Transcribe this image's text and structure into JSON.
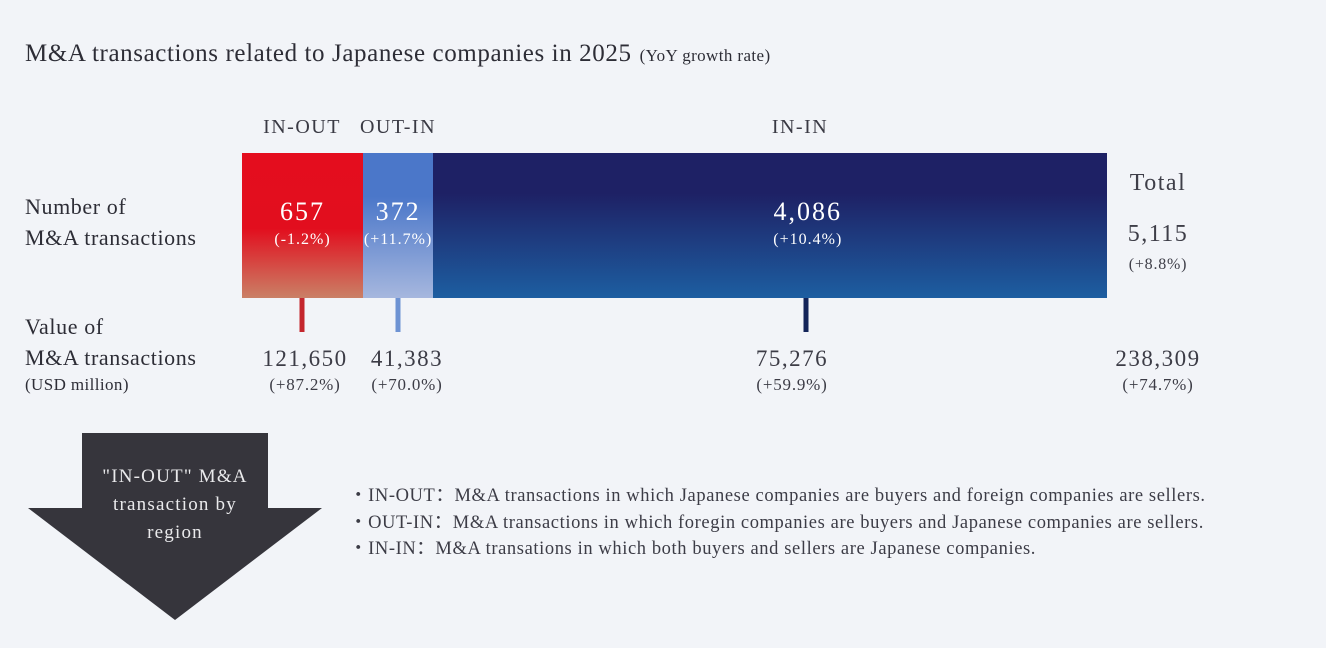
{
  "title": {
    "main": "M&A transactions related to Japanese companies in 2025",
    "suffix": "(YoY growth rate)"
  },
  "rows": {
    "count_label_line1": "Number of",
    "count_label_line2": "M&A transactions",
    "value_label_line1": "Value of",
    "value_label_line2": "M&A transactions",
    "value_label_line3": "(USD million)"
  },
  "segments": [
    {
      "label": "IN-OUT",
      "count": "657",
      "count_yoy": "(-1.2%)",
      "value": "121,650",
      "value_yoy": "(+87.2%)",
      "width_pct": 14.0
    },
    {
      "label": "OUT-IN",
      "count": "372",
      "count_yoy": "(+11.7%)",
      "value": "41,383",
      "value_yoy": "(+70.0%)",
      "width_pct": 8.1
    },
    {
      "label": "IN-IN",
      "count": "4,086",
      "count_yoy": "(+10.4%)",
      "value": "75,276",
      "value_yoy": "(+59.9%)",
      "width_pct": 77.9
    }
  ],
  "total": {
    "label": "Total",
    "count": "5,115",
    "count_yoy": "(+8.8%)",
    "value": "238,309",
    "value_yoy": "(+74.7%)"
  },
  "arrow": {
    "line1": "\"IN-OUT\" M&A",
    "line2": "transaction by",
    "line3": "region"
  },
  "legend": {
    "item1": "・IN-OUT：M&A transactions in which Japanese companies are buyers and foreign companies are sellers.",
    "item2": "・OUT-IN：M&A transactions in which foregin companies are buyers and Japanese companies are sellers.",
    "item3": "・IN-IN：M&A transations in which both buyers and sellers are Japanese companies."
  },
  "colors": {
    "background": "#f2f4f8",
    "in_out_red_top": "#e40d1e",
    "in_out_red_bottom": "#ca8066",
    "out_in_blue_top": "#4b77c9",
    "out_in_blue_bottom": "#a6b7de",
    "in_in_navy_top": "#1e2165",
    "in_in_navy_bottom": "#1d5ea1",
    "tick_red": "#c4262d",
    "tick_blue": "#6e93d3",
    "tick_navy": "#132459",
    "arrow_fill": "#36353c",
    "text_dark": "#2d2d36",
    "bar_text": "#ffffff"
  },
  "chart_data": {
    "type": "bar",
    "subtype": "horizontal-stacked",
    "title": "M&A transactions related to Japanese companies in 2025 (YoY growth rate)",
    "categories": [
      "IN-OUT",
      "OUT-IN",
      "IN-IN"
    ],
    "series": [
      {
        "name": "Number of M&A transactions",
        "values": [
          657,
          372,
          4086
        ],
        "yoy_growth_pct": [
          -1.2,
          11.7,
          10.4
        ],
        "total": 5115,
        "total_yoy_pct": 8.8
      },
      {
        "name": "Value of M&A transactions (USD million)",
        "values": [
          121650,
          41383,
          75276
        ],
        "yoy_growth_pct": [
          87.2,
          70.0,
          59.9
        ],
        "total": 238309,
        "total_yoy_pct": 74.7
      }
    ],
    "category_definitions": [
      "IN-OUT: M&A transactions in which Japanese companies are buyers and foreign companies are sellers.",
      "OUT-IN: M&A transactions in which foregin companies are buyers and Japanese companies are sellers.",
      "IN-IN: M&A transations in which both buyers and sellers are Japanese companies."
    ],
    "legend_position": "above-bar",
    "grid": false,
    "axis": "none"
  }
}
